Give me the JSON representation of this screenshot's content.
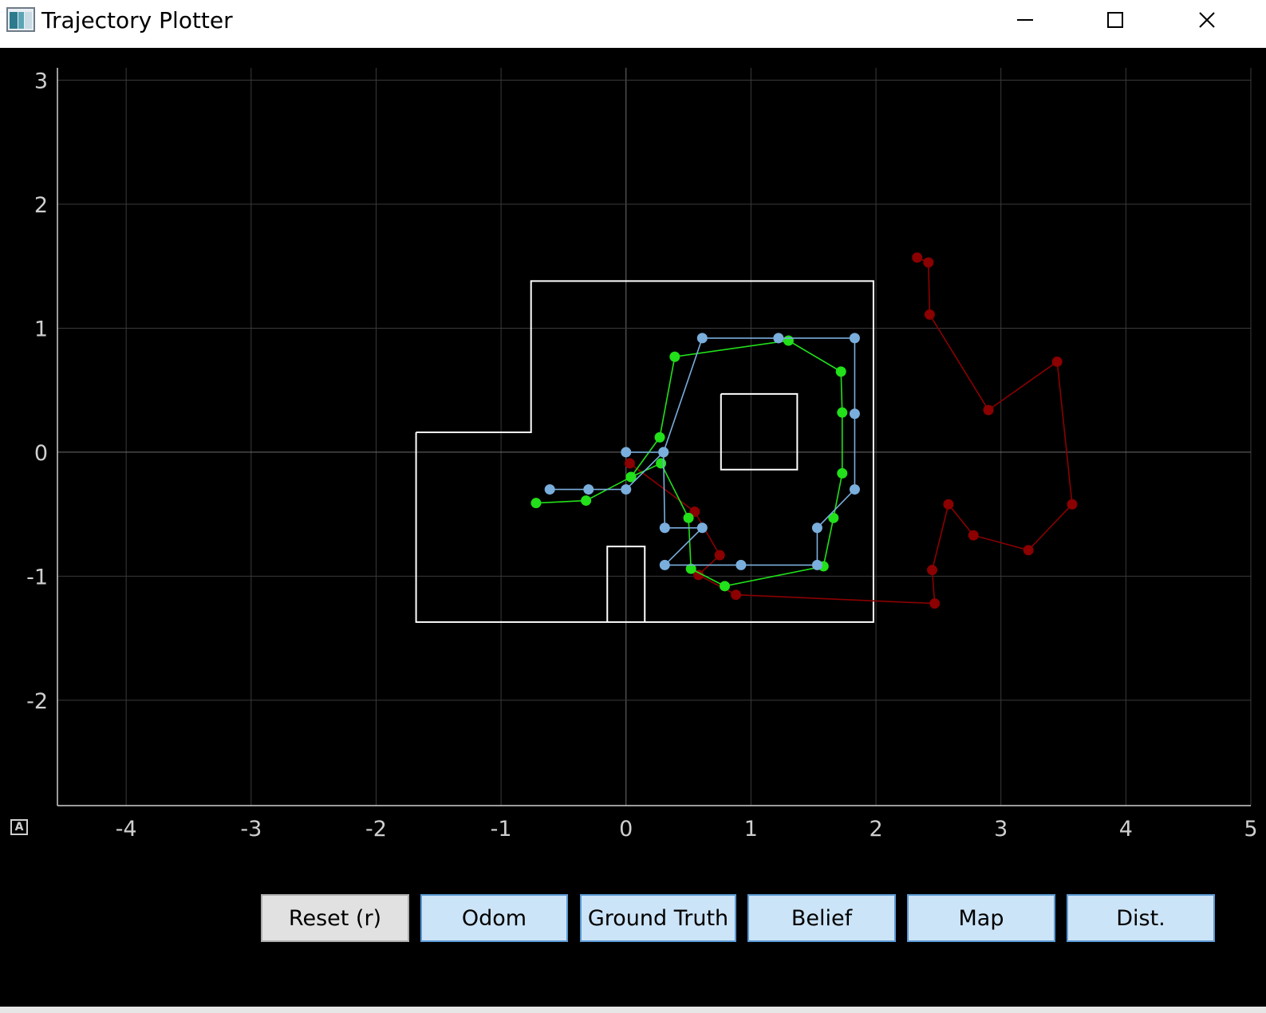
{
  "window": {
    "title": "Trajectory Plotter"
  },
  "plot": {
    "auto_range_label": "A",
    "x_ticks": [
      "-4",
      "-3",
      "-2",
      "-1",
      "0",
      "1",
      "2",
      "3",
      "4",
      "5"
    ],
    "y_ticks": [
      "3",
      "2",
      "1",
      "0",
      "-1",
      "-2"
    ],
    "colors": {
      "background": "#000000",
      "grid": "#3a3a3a",
      "axis": "#cfcfcf",
      "map": "#ffffff",
      "odom": "#8b0000",
      "ground_truth": "#22e01a",
      "belief": "#7aaedc"
    }
  },
  "chart_data": {
    "type": "scatter",
    "xlim": [
      -4.55,
      5.0
    ],
    "ylim": [
      -2.85,
      3.1
    ],
    "grid": true,
    "map_segments": [
      [
        [
          -1.68,
          0.16
        ],
        [
          -0.76,
          0.16
        ],
        [
          -0.76,
          1.38
        ],
        [
          1.98,
          1.38
        ],
        [
          1.98,
          -1.37
        ],
        [
          -1.68,
          -1.37
        ],
        [
          -1.68,
          0.16
        ]
      ],
      [
        [
          0.76,
          0.47
        ],
        [
          1.37,
          0.47
        ],
        [
          1.37,
          -0.14
        ],
        [
          0.76,
          -0.14
        ],
        [
          0.76,
          0.47
        ]
      ],
      [
        [
          -0.15,
          -1.37
        ],
        [
          -0.15,
          -0.76
        ],
        [
          0.15,
          -0.76
        ],
        [
          0.15,
          -1.37
        ]
      ]
    ],
    "series": [
      {
        "name": "Odom",
        "color": "#8b0000",
        "points": [
          [
            0.03,
            -0.09
          ],
          [
            0.55,
            -0.48
          ],
          [
            0.75,
            -0.83
          ],
          [
            0.58,
            -0.99
          ],
          [
            0.88,
            -1.15
          ],
          [
            2.47,
            -1.22
          ],
          [
            2.45,
            -0.95
          ],
          [
            2.58,
            -0.42
          ],
          [
            2.78,
            -0.67
          ],
          [
            3.22,
            -0.79
          ],
          [
            3.57,
            -0.42
          ],
          [
            3.45,
            0.73
          ],
          [
            2.9,
            0.34
          ],
          [
            2.43,
            1.11
          ],
          [
            2.42,
            1.53
          ],
          [
            2.33,
            1.57
          ]
        ]
      },
      {
        "name": "Ground Truth",
        "color": "#22e01a",
        "points": [
          [
            -0.72,
            -0.41
          ],
          [
            -0.32,
            -0.39
          ],
          [
            0.04,
            -0.2
          ],
          [
            0.27,
            0.12
          ],
          [
            0.39,
            0.77
          ],
          [
            1.3,
            0.9
          ],
          [
            1.72,
            0.65
          ],
          [
            1.73,
            0.32
          ],
          [
            1.73,
            -0.17
          ],
          [
            1.66,
            -0.53
          ],
          [
            1.58,
            -0.92
          ],
          [
            0.79,
            -1.08
          ],
          [
            0.52,
            -0.94
          ],
          [
            0.5,
            -0.53
          ],
          [
            0.28,
            -0.09
          ],
          [
            0.04,
            -0.2
          ]
        ]
      },
      {
        "name": "Belief",
        "color": "#7aaedc",
        "points": [
          [
            0.0,
            0.0
          ],
          [
            0.3,
            0.0
          ],
          [
            0.61,
            0.92
          ],
          [
            1.22,
            0.92
          ],
          [
            1.83,
            0.92
          ],
          [
            1.83,
            0.31
          ],
          [
            1.83,
            -0.3
          ],
          [
            1.53,
            -0.61
          ],
          [
            1.53,
            -0.91
          ],
          [
            0.92,
            -0.91
          ],
          [
            0.31,
            -0.91
          ],
          [
            0.61,
            -0.61
          ],
          [
            0.31,
            -0.61
          ],
          [
            0.3,
            0.0
          ],
          [
            0.0,
            -0.3
          ],
          [
            -0.3,
            -0.3
          ],
          [
            -0.61,
            -0.3
          ]
        ]
      }
    ]
  },
  "buttons": {
    "reset": "Reset (r)",
    "odom": "Odom",
    "ground_truth": "Ground Truth",
    "belief": "Belief",
    "map": "Map",
    "dist": "Dist."
  }
}
